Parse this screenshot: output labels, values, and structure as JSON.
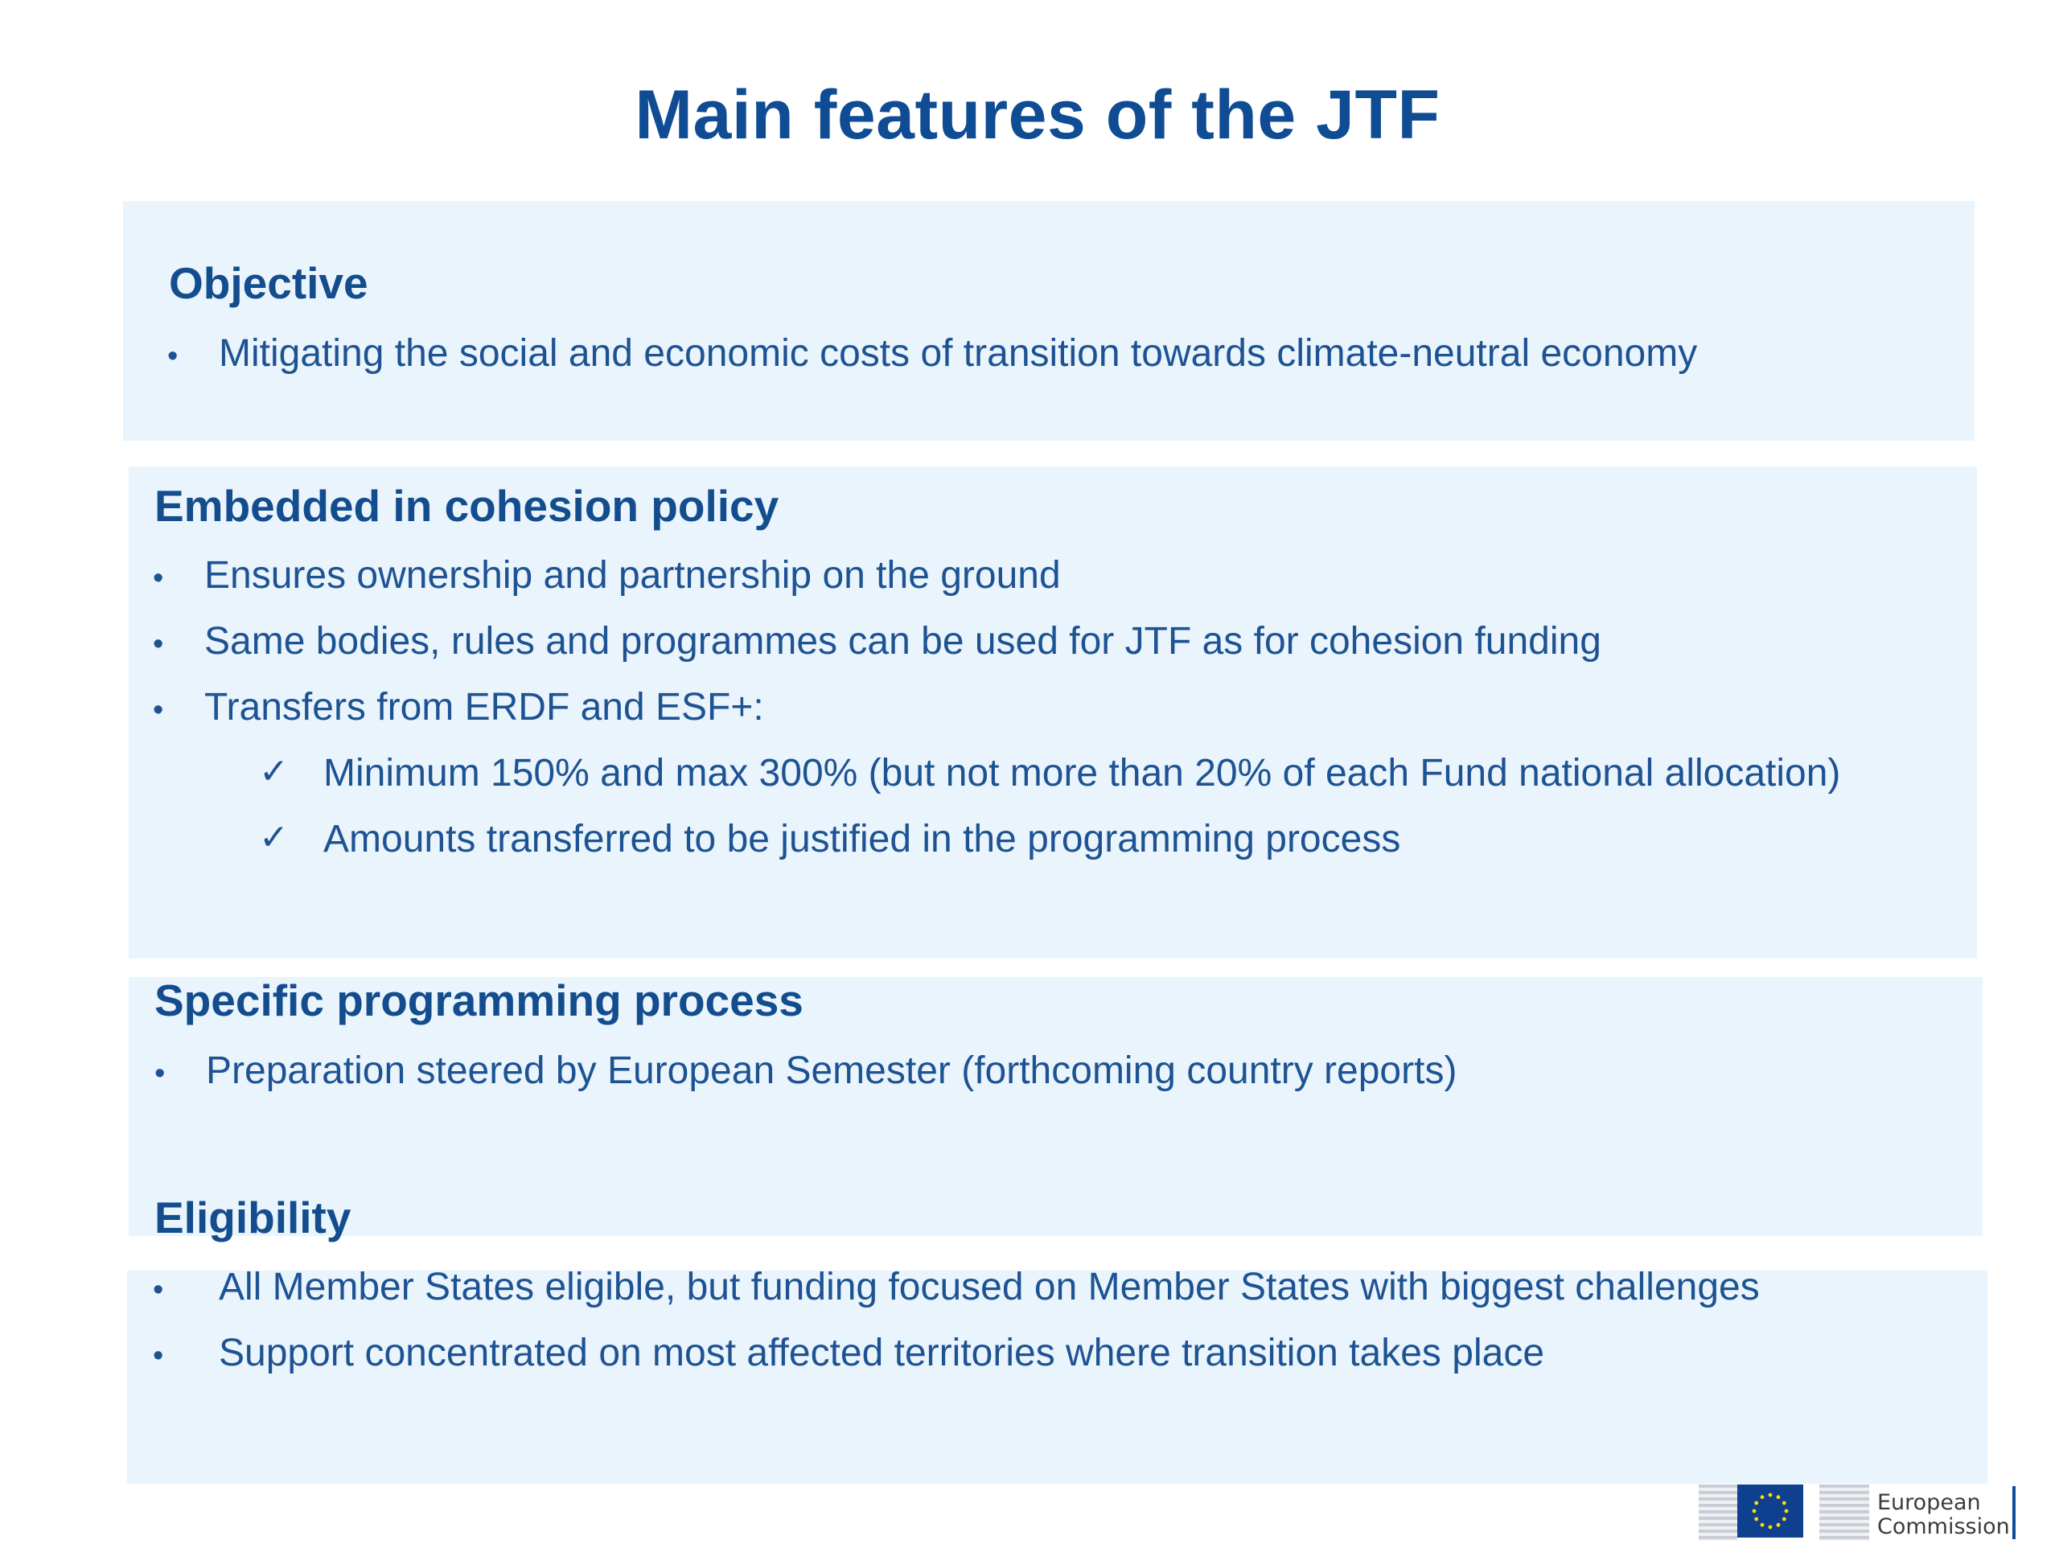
{
  "slide": {
    "title": "Main features of the JTF"
  },
  "sections": {
    "objective": {
      "heading": "Objective",
      "bullets": [
        "Mitigating the social and economic costs of transition towards climate-neutral economy"
      ]
    },
    "embedded": {
      "heading": "Embedded in cohesion policy",
      "bullets": [
        "Ensures ownership and partnership on the ground",
        "Same bodies, rules and programmes can be used for JTF as for cohesion funding",
        "Transfers from ERDF and ESF+:"
      ],
      "sub_bullets": [
        "Minimum 150% and max 300% (but not more than 20% of each Fund national allocation)",
        "Amounts transferred to be justified in the programming process"
      ]
    },
    "programming": {
      "heading": "Specific programming  process",
      "bullets": [
        "Preparation steered by European Semester (forthcoming country reports)"
      ]
    },
    "eligibility": {
      "heading": "Eligibility",
      "bullets": [
        "All Member States eligible, but funding focused on Member States with biggest challenges",
        "Support concentrated on most affected territories where transition takes place"
      ]
    }
  },
  "symbols": {
    "bullet": "•",
    "check": "✓"
  },
  "logo": {
    "name": "European\nCommission",
    "flag_color": "#0f3f8f",
    "star_color": "#ffdd00",
    "icon": "eu-flag-icon"
  },
  "colors": {
    "title": "#0f4c94",
    "text": "#1d5393",
    "panel": "#eaf4fc"
  }
}
